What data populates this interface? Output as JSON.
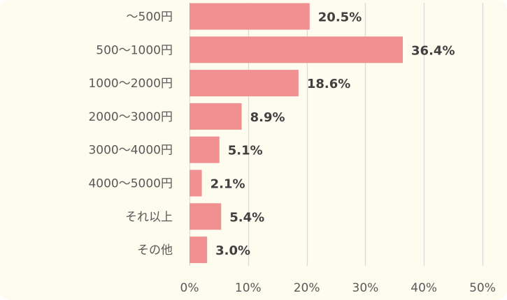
{
  "chart_data": {
    "type": "bar",
    "orientation": "horizontal",
    "title": "",
    "xlabel": "",
    "ylabel": "",
    "categories": [
      "～500円",
      "500～1000円",
      "1000～2000円",
      "2000～3000円",
      "3000～4000円",
      "4000～5000円",
      "それ以上",
      "その他"
    ],
    "values": [
      20.5,
      36.4,
      18.6,
      8.9,
      5.1,
      2.1,
      5.4,
      3.0
    ],
    "value_labels": [
      "20.5%",
      "36.4%",
      "18.6%",
      "8.9%",
      "5.1%",
      "2.1%",
      "5.4%",
      "3.0%"
    ],
    "xlim": [
      0,
      50
    ],
    "x_ticks": [
      0,
      10,
      20,
      30,
      40,
      50
    ],
    "x_tick_labels": [
      "0%",
      "10%",
      "20%",
      "30%",
      "40%",
      "50%"
    ],
    "grid": "vertical",
    "legend": "none",
    "colors": {
      "bar": "#f09090",
      "background": "#fefcee",
      "grid": "#d9d9d9",
      "label_text": "#595959",
      "value_text": "#404040"
    }
  }
}
